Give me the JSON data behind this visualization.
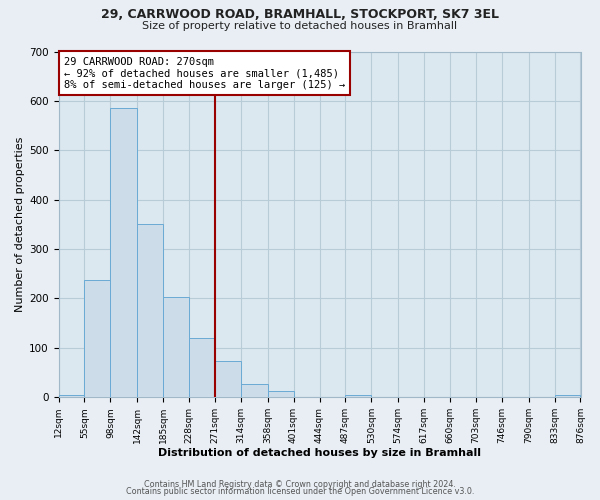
{
  "title_line1": "29, CARRWOOD ROAD, BRAMHALL, STOCKPORT, SK7 3EL",
  "title_line2": "Size of property relative to detached houses in Bramhall",
  "xlabel": "Distribution of detached houses by size in Bramhall",
  "ylabel": "Number of detached properties",
  "bar_edges": [
    12,
    55,
    98,
    142,
    185,
    228,
    271,
    314,
    358,
    401,
    444,
    487,
    530,
    574,
    617,
    660,
    703,
    746,
    790,
    833,
    876
  ],
  "bar_heights": [
    5,
    238,
    585,
    350,
    202,
    119,
    73,
    27,
    12,
    0,
    0,
    5,
    0,
    0,
    0,
    0,
    0,
    0,
    0,
    5
  ],
  "bar_color": "#ccdce8",
  "bar_edgecolor": "#6aaad4",
  "property_line_x": 271,
  "property_line_color": "#990000",
  "annotation_text": "29 CARRWOOD ROAD: 270sqm\n← 92% of detached houses are smaller (1,485)\n8% of semi-detached houses are larger (125) →",
  "annotation_box_facecolor": "#ffffff",
  "annotation_box_edgecolor": "#990000",
  "ylim": [
    0,
    700
  ],
  "yticks": [
    0,
    100,
    200,
    300,
    400,
    500,
    600,
    700
  ],
  "tick_labels": [
    "12sqm",
    "55sqm",
    "98sqm",
    "142sqm",
    "185sqm",
    "228sqm",
    "271sqm",
    "314sqm",
    "358sqm",
    "401sqm",
    "444sqm",
    "487sqm",
    "530sqm",
    "574sqm",
    "617sqm",
    "660sqm",
    "703sqm",
    "746sqm",
    "790sqm",
    "833sqm",
    "876sqm"
  ],
  "footer_line1": "Contains HM Land Registry data © Crown copyright and database right 2024.",
  "footer_line2": "Contains public sector information licensed under the Open Government Licence v3.0.",
  "background_color": "#e8eef4",
  "plot_bg_color": "#dce8f0",
  "grid_color": "#b8ccd8",
  "title_fontsize": 9,
  "subtitle_fontsize": 8,
  "xlabel_fontsize": 8,
  "ylabel_fontsize": 8,
  "tick_fontsize": 6.5,
  "ytick_fontsize": 7.5,
  "annotation_fontsize": 7.5,
  "footer_fontsize": 5.8
}
